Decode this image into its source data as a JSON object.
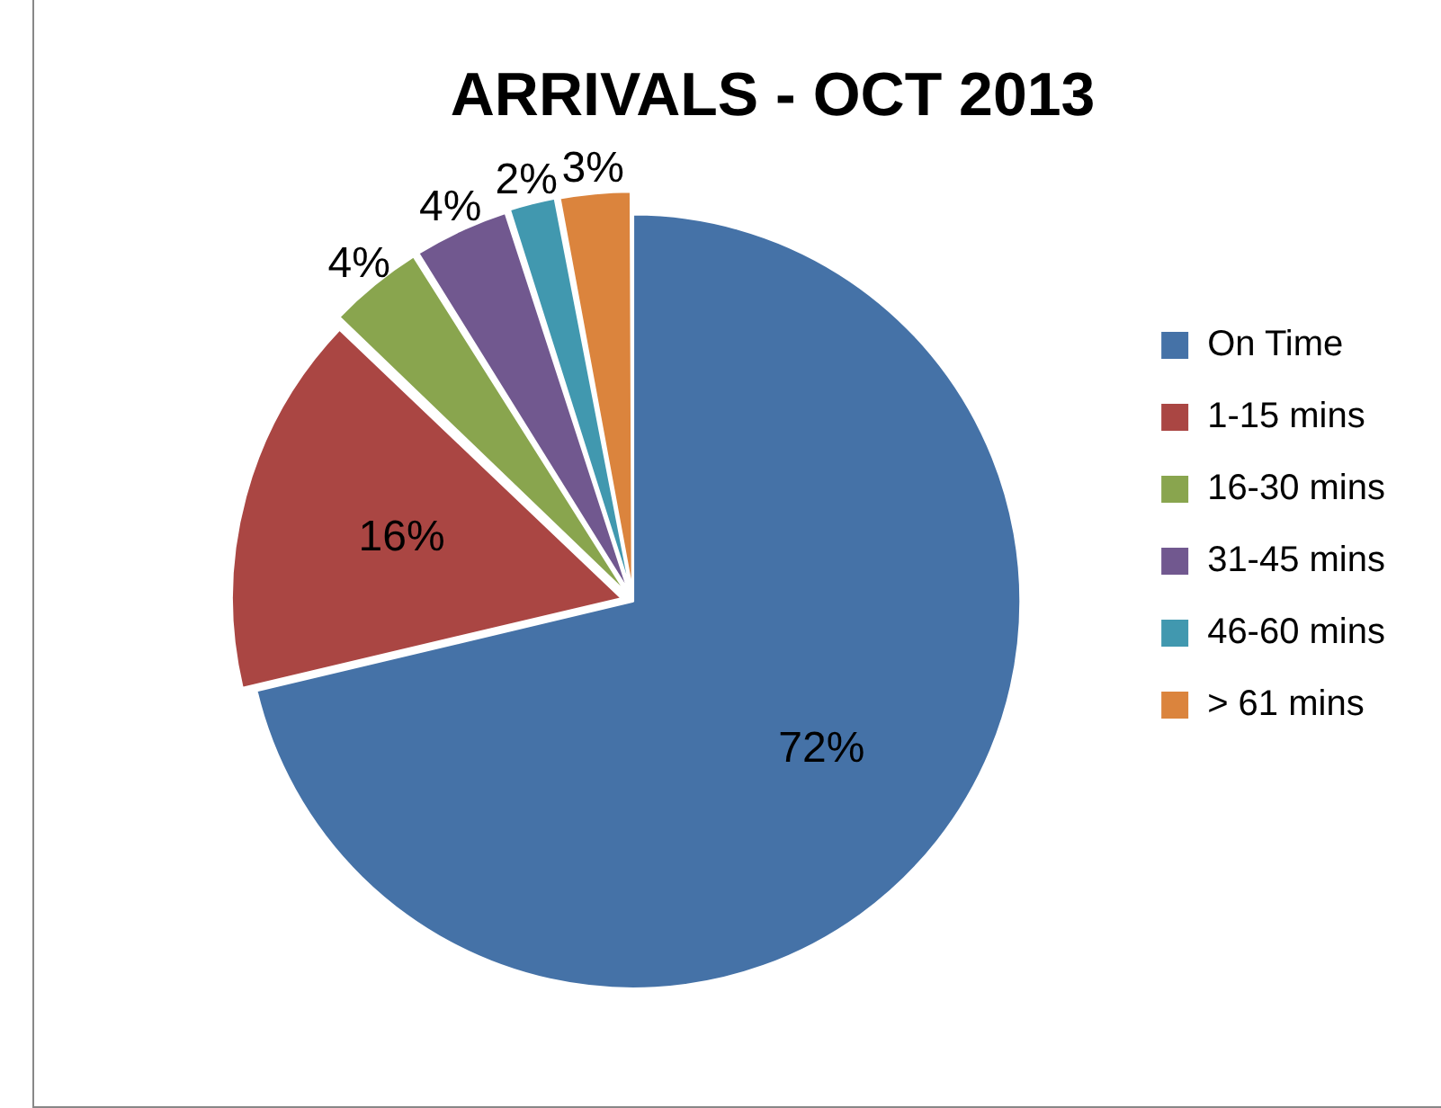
{
  "chart_data": {
    "type": "pie",
    "title": "ARRIVALS - OCT 2013",
    "categories": [
      "On Time",
      "1-15 mins",
      "16-30 mins",
      "31-45 mins",
      "46-60 mins",
      "> 61 mins"
    ],
    "values": [
      72,
      16,
      4,
      4,
      2,
      3
    ],
    "colors": [
      "#4572a7",
      "#aa4643",
      "#89a54e",
      "#71588f",
      "#4198af",
      "#db843d"
    ],
    "value_labels": [
      "72%",
      "16%",
      "4%",
      "4%",
      "2%",
      "3%"
    ],
    "legend": "right"
  }
}
